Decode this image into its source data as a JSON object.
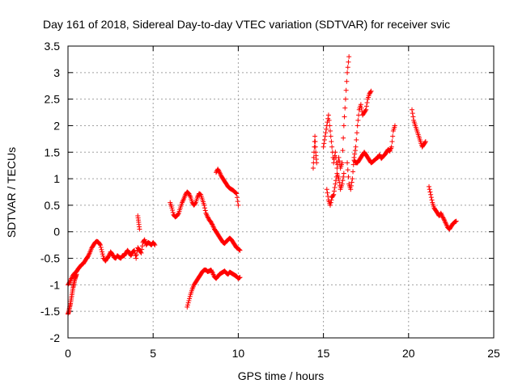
{
  "chart_data": {
    "type": "scatter",
    "title": "Day 161 of 2018, Sidereal Day-to-day VTEC variation (SDTVAR) for receiver svic",
    "xlabel": "GPS time / hours",
    "ylabel": "SDTVAR / TECUs",
    "xlim": [
      0,
      25
    ],
    "ylim": [
      -2,
      3.5
    ],
    "x_ticks": [
      0,
      5,
      10,
      15,
      20,
      25
    ],
    "x_tick_labels": [
      "0",
      "5",
      "10",
      "15",
      "20",
      "25"
    ],
    "y_ticks": [
      -2,
      -1.5,
      -1,
      -0.5,
      0,
      0.5,
      1,
      1.5,
      2,
      2.5,
      3,
      3.5
    ],
    "y_tick_labels": [
      "-2",
      "-1.5",
      "-1",
      "-0.5",
      "0",
      "0.5",
      "1",
      "1.5",
      "2",
      "2.5",
      "3",
      "3.5"
    ],
    "grid": true,
    "marker": "+",
    "series": [
      {
        "name": "SDTVAR",
        "color": "#ff0000",
        "segments": [
          {
            "x": [
              0.0,
              0.1,
              0.2,
              0.3,
              0.4,
              0.5,
              0.6,
              0.7,
              0.8,
              0.9,
              1.0,
              1.1,
              1.2,
              1.3,
              1.4,
              1.5,
              1.6,
              1.7,
              1.8,
              1.9,
              2.0,
              2.1,
              2.2,
              2.3,
              2.4,
              2.5,
              2.6,
              2.7,
              2.8,
              2.9,
              3.0,
              3.1,
              3.2,
              3.3,
              3.4,
              3.5,
              3.6,
              3.7,
              3.8,
              3.9,
              4.0,
              4.1,
              4.2,
              4.3,
              4.4,
              4.5,
              4.6,
              4.7,
              4.8,
              4.9,
              5.0,
              5.1
            ],
            "y": [
              -1.0,
              -0.95,
              -0.88,
              -0.82,
              -0.78,
              -0.75,
              -0.7,
              -0.66,
              -0.62,
              -0.6,
              -0.55,
              -0.5,
              -0.45,
              -0.38,
              -0.3,
              -0.25,
              -0.2,
              -0.18,
              -0.2,
              -0.25,
              -0.38,
              -0.5,
              -0.55,
              -0.5,
              -0.45,
              -0.38,
              -0.42,
              -0.48,
              -0.5,
              -0.45,
              -0.48,
              -0.5,
              -0.45,
              -0.45,
              -0.4,
              -0.35,
              -0.4,
              -0.45,
              -0.38,
              -0.35,
              -0.5,
              -0.3,
              -0.35,
              -0.4,
              -0.2,
              -0.15,
              -0.25,
              -0.2,
              -0.22,
              -0.25,
              -0.2,
              -0.25
            ]
          },
          {
            "x": [
              0.0,
              0.05,
              0.1,
              0.15,
              0.2,
              0.25,
              0.3,
              0.35,
              0.4,
              0.45,
              0.5
            ],
            "y": [
              -1.55,
              -1.5,
              -1.42,
              -1.35,
              -1.25,
              -1.15,
              -1.05,
              -0.98,
              -0.9,
              -0.85,
              -0.8
            ]
          },
          {
            "x": [
              4.1,
              4.15,
              4.2
            ],
            "y": [
              0.3,
              0.18,
              0.05
            ]
          },
          {
            "x": [
              6.0,
              6.1,
              6.2,
              6.3,
              6.4,
              6.5,
              6.6,
              6.7,
              6.8,
              6.9,
              7.0,
              7.1,
              7.2,
              7.3,
              7.4,
              7.5,
              7.6,
              7.7,
              7.8,
              7.9,
              8.0,
              8.1,
              8.2,
              8.3,
              8.4,
              8.5,
              8.6,
              8.7,
              8.8,
              8.9,
              9.0,
              9.1,
              9.2,
              9.3,
              9.4,
              9.5,
              9.6,
              9.7,
              9.8,
              9.9,
              10.0,
              10.1
            ],
            "y": [
              0.55,
              0.45,
              0.32,
              0.28,
              0.3,
              0.35,
              0.45,
              0.55,
              0.62,
              0.7,
              0.75,
              0.72,
              0.65,
              0.55,
              0.5,
              0.55,
              0.65,
              0.72,
              0.7,
              0.6,
              0.5,
              0.35,
              0.28,
              0.22,
              0.18,
              0.12,
              0.05,
              0.0,
              -0.05,
              -0.1,
              -0.15,
              -0.2,
              -0.22,
              -0.18,
              -0.15,
              -0.12,
              -0.15,
              -0.2,
              -0.25,
              -0.3,
              -0.32,
              -0.35
            ]
          },
          {
            "x": [
              7.0,
              7.1,
              7.2,
              7.3,
              7.4,
              7.5,
              7.6,
              7.7,
              7.8,
              7.9,
              8.0,
              8.1,
              8.2,
              8.3,
              8.4,
              8.5,
              8.6,
              8.7,
              8.8,
              8.9,
              9.0,
              9.1,
              9.2,
              9.3,
              9.4,
              9.5,
              9.6,
              9.7,
              9.8,
              9.9,
              10.0,
              10.1
            ],
            "y": [
              -1.42,
              -1.3,
              -1.18,
              -1.08,
              -1.0,
              -0.95,
              -0.9,
              -0.85,
              -0.8,
              -0.75,
              -0.72,
              -0.72,
              -0.75,
              -0.74,
              -0.72,
              -0.78,
              -0.85,
              -0.88,
              -0.84,
              -0.8,
              -0.78,
              -0.76,
              -0.74,
              -0.78,
              -0.8,
              -0.76,
              -0.78,
              -0.8,
              -0.82,
              -0.84,
              -0.88,
              -0.86
            ]
          },
          {
            "x": [
              8.7,
              8.8,
              8.9,
              9.0,
              9.1,
              9.2,
              9.3,
              9.4,
              9.5,
              9.6,
              9.7,
              9.8,
              9.9,
              10.0
            ],
            "y": [
              1.12,
              1.18,
              1.12,
              1.05,
              1.0,
              0.95,
              0.9,
              0.85,
              0.82,
              0.8,
              0.78,
              0.75,
              0.72,
              0.5
            ]
          },
          {
            "x": [
              14.4,
              14.45,
              14.5,
              14.55,
              14.6
            ],
            "y": [
              1.2,
              1.5,
              1.8,
              1.5,
              1.3
            ]
          },
          {
            "x": [
              15.0,
              15.1,
              15.2,
              15.3,
              15.4,
              15.5,
              15.6,
              15.7,
              15.8,
              15.9,
              16.0,
              16.1,
              16.2,
              16.3,
              16.4,
              16.5
            ],
            "y": [
              1.6,
              1.8,
              2.0,
              2.2,
              1.9,
              1.6,
              1.3,
              1.5,
              1.2,
              1.4,
              1.2,
              1.3,
              2.0,
              2.5,
              3.0,
              3.3
            ]
          },
          {
            "x": [
              15.2,
              15.3,
              15.4,
              15.5,
              15.6,
              15.7,
              15.8,
              15.9,
              16.0,
              16.1,
              16.2
            ],
            "y": [
              0.8,
              0.6,
              0.5,
              0.65,
              0.7,
              0.9,
              1.1,
              1.0,
              0.8,
              0.9,
              1.1
            ]
          },
          {
            "x": [
              16.4,
              16.5,
              16.6,
              16.7,
              16.8,
              16.9,
              17.0,
              17.1,
              17.2,
              17.3,
              17.4,
              17.5,
              17.6,
              17.7,
              17.8
            ],
            "y": [
              1.3,
              0.9,
              0.8,
              1.0,
              1.4,
              1.6,
              2.0,
              2.3,
              2.4,
              2.2,
              2.25,
              2.3,
              2.5,
              2.6,
              2.65
            ]
          },
          {
            "x": [
              16.8,
              16.9,
              17.0,
              17.1,
              17.2,
              17.3,
              17.4,
              17.5,
              17.6,
              17.7,
              17.8,
              17.9,
              18.0,
              18.1,
              18.2,
              18.3,
              18.4,
              18.5,
              18.6,
              18.7,
              18.8,
              18.9,
              19.0,
              19.1,
              19.2
            ],
            "y": [
              1.35,
              1.3,
              1.3,
              1.35,
              1.4,
              1.45,
              1.5,
              1.45,
              1.4,
              1.35,
              1.3,
              1.32,
              1.35,
              1.38,
              1.4,
              1.45,
              1.38,
              1.42,
              1.45,
              1.5,
              1.55,
              1.52,
              1.6,
              1.9,
              2.0
            ]
          },
          {
            "x": [
              20.2,
              20.3,
              20.4,
              20.5,
              20.6,
              20.7,
              20.8,
              20.9,
              21.0
            ],
            "y": [
              2.3,
              2.1,
              2.0,
              1.9,
              1.8,
              1.7,
              1.6,
              1.65,
              1.7
            ]
          },
          {
            "x": [
              21.2,
              21.3,
              21.4,
              21.5,
              21.6,
              21.7,
              21.8,
              21.9,
              22.0,
              22.1,
              22.2,
              22.3,
              22.4,
              22.5,
              22.6,
              22.7,
              22.8
            ],
            "y": [
              0.85,
              0.7,
              0.55,
              0.45,
              0.4,
              0.35,
              0.3,
              0.35,
              0.28,
              0.22,
              0.15,
              0.08,
              0.05,
              0.1,
              0.15,
              0.18,
              0.2
            ]
          }
        ]
      }
    ]
  }
}
